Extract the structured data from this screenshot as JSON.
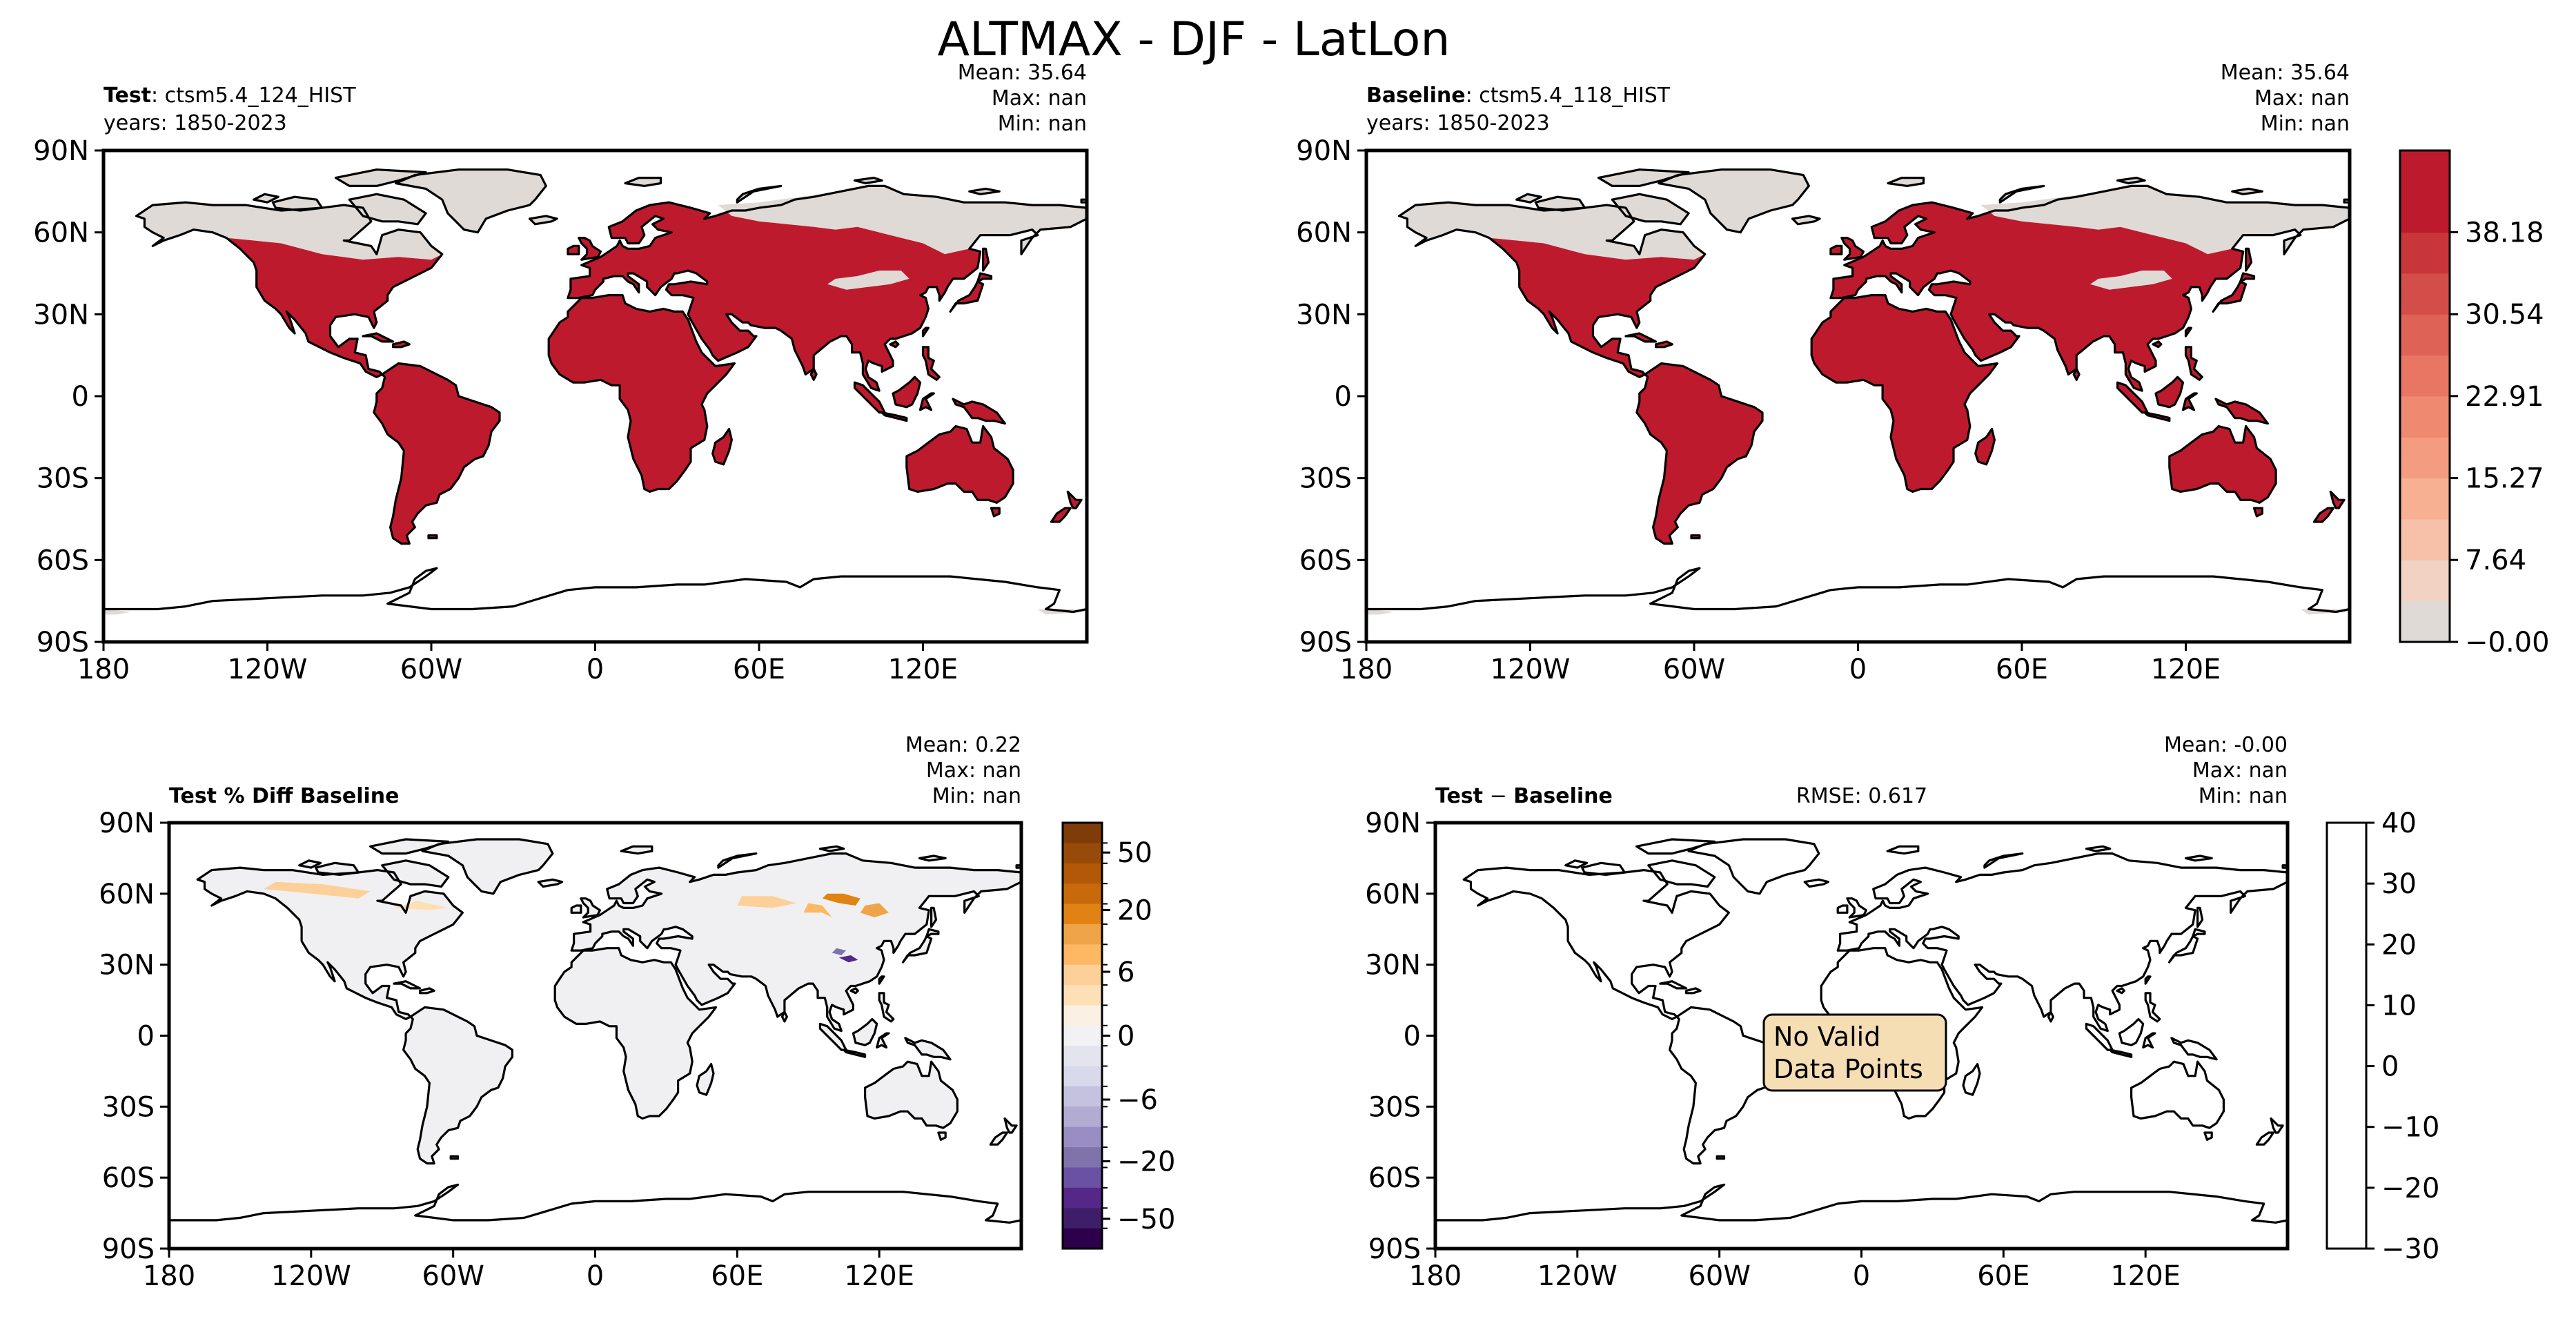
{
  "figure_title": "ALTMAX - DJF - LatLon",
  "colors": {
    "land_high": "#be1a2d",
    "land_low": "#e0dad6",
    "diff_land": "#f0f0f2",
    "nodata_box_fill": "#f6deb4"
  },
  "panels": {
    "test": {
      "label_bold": "Test",
      "label_rest": ": ctsm5.4_124_HIST",
      "years": "years: 1850-2023",
      "stats": {
        "mean": "Mean: 35.64",
        "max": "Max:   nan",
        "min": "Min:   nan"
      }
    },
    "baseline": {
      "label_bold": "Baseline",
      "label_rest": ": ctsm5.4_118_HIST",
      "years": "years: 1850-2023",
      "stats": {
        "mean": "Mean: 35.64",
        "max": "Max:   nan",
        "min": "Min:   nan"
      }
    },
    "pct_diff": {
      "label_bold": "Test % Diff Baseline",
      "stats": {
        "mean": "Mean:  0.22",
        "max": "Max:   nan",
        "min": "Min:   nan"
      }
    },
    "abs_diff": {
      "label_test": "Test",
      "label_minus": " − ",
      "label_baseline": "Baseline",
      "rmse": "RMSE: 0.617",
      "stats": {
        "mean": "Mean: -0.00",
        "max": "Max:   nan",
        "min": "Min:   nan"
      },
      "nodata_line1": "No Valid",
      "nodata_line2": "Data Points"
    }
  },
  "chart_data": [
    {
      "type": "heatmap",
      "title": "Test: ctsm5.4_124_HIST",
      "x_ticks": [
        "180",
        "120W",
        "60W",
        "0",
        "60E",
        "120E"
      ],
      "y_ticks": [
        "90N",
        "60N",
        "30N",
        "0",
        "30S",
        "60S",
        "90S"
      ],
      "xlim": [
        -180,
        180
      ],
      "ylim": [
        -90,
        90
      ],
      "mean": 35.64,
      "max": "nan",
      "min": "nan"
    },
    {
      "type": "heatmap",
      "title": "Baseline: ctsm5.4_118_HIST",
      "x_ticks": [
        "180",
        "120W",
        "60W",
        "0",
        "60E",
        "120E"
      ],
      "y_ticks": [
        "90N",
        "60N",
        "30N",
        "0",
        "30S",
        "60S",
        "90S"
      ],
      "xlim": [
        -180,
        180
      ],
      "ylim": [
        -90,
        90
      ],
      "mean": 35.64,
      "max": "nan",
      "min": "nan",
      "colorbar": {
        "range": [
          0,
          45.8
        ],
        "levels": 12,
        "tick_values": [
          38.18,
          30.54,
          22.91,
          15.27,
          7.64,
          0
        ],
        "tick_labels": [
          "38.18",
          "30.54",
          "22.91",
          "15.27",
          "7.64",
          "−0.00"
        ],
        "colors": [
          "#e0dad6",
          "#f2d2c3",
          "#f6c0a9",
          "#f8b093",
          "#f49c7f",
          "#ef8a70",
          "#e87662",
          "#de6356",
          "#d34e49",
          "#c8363a",
          "#be1a2d",
          "#be1a2d"
        ]
      }
    },
    {
      "type": "heatmap",
      "title": "Test % Diff Baseline",
      "x_ticks": [
        "180",
        "120W",
        "60W",
        "0",
        "60E",
        "120E"
      ],
      "y_ticks": [
        "90N",
        "60N",
        "30N",
        "0",
        "30S",
        "60S",
        "90S"
      ],
      "xlim": [
        -180,
        180
      ],
      "ylim": [
        -90,
        90
      ],
      "mean": 0.22,
      "max": "nan",
      "min": "nan",
      "colorbar": {
        "tick_labels": [
          "50",
          "20",
          "6",
          "0",
          "−6",
          "−20",
          "−50"
        ],
        "colors": [
          "#7f3b08",
          "#974a0a",
          "#b35806",
          "#c86a0c",
          "#e08214",
          "#f0a448",
          "#fdb863",
          "#fdd09a",
          "#fee0b6",
          "#faf0e3",
          "#f2f2f4",
          "#e4e4ee",
          "#d8daeb",
          "#c5c2df",
          "#b2abd2",
          "#998ec3",
          "#8073ac",
          "#6a51a3",
          "#542788",
          "#3f1e69",
          "#2d004b"
        ]
      }
    },
    {
      "type": "heatmap",
      "title": "Test − Baseline",
      "x_ticks": [
        "180",
        "120W",
        "60W",
        "0",
        "60E",
        "120E"
      ],
      "y_ticks": [
        "90N",
        "60N",
        "30N",
        "0",
        "30S",
        "60S",
        "90S"
      ],
      "xlim": [
        -180,
        180
      ],
      "ylim": [
        -90,
        90
      ],
      "rmse": 0.617,
      "mean": -0.0,
      "max": "nan",
      "min": "nan",
      "colorbar": {
        "range": [
          -30,
          40
        ],
        "tick_values": [
          40,
          30,
          20,
          10,
          0,
          -10,
          -20,
          -30
        ],
        "tick_labels": [
          "40",
          "30",
          "20",
          "10",
          "0",
          "−10",
          "−20",
          "−30"
        ]
      }
    }
  ]
}
